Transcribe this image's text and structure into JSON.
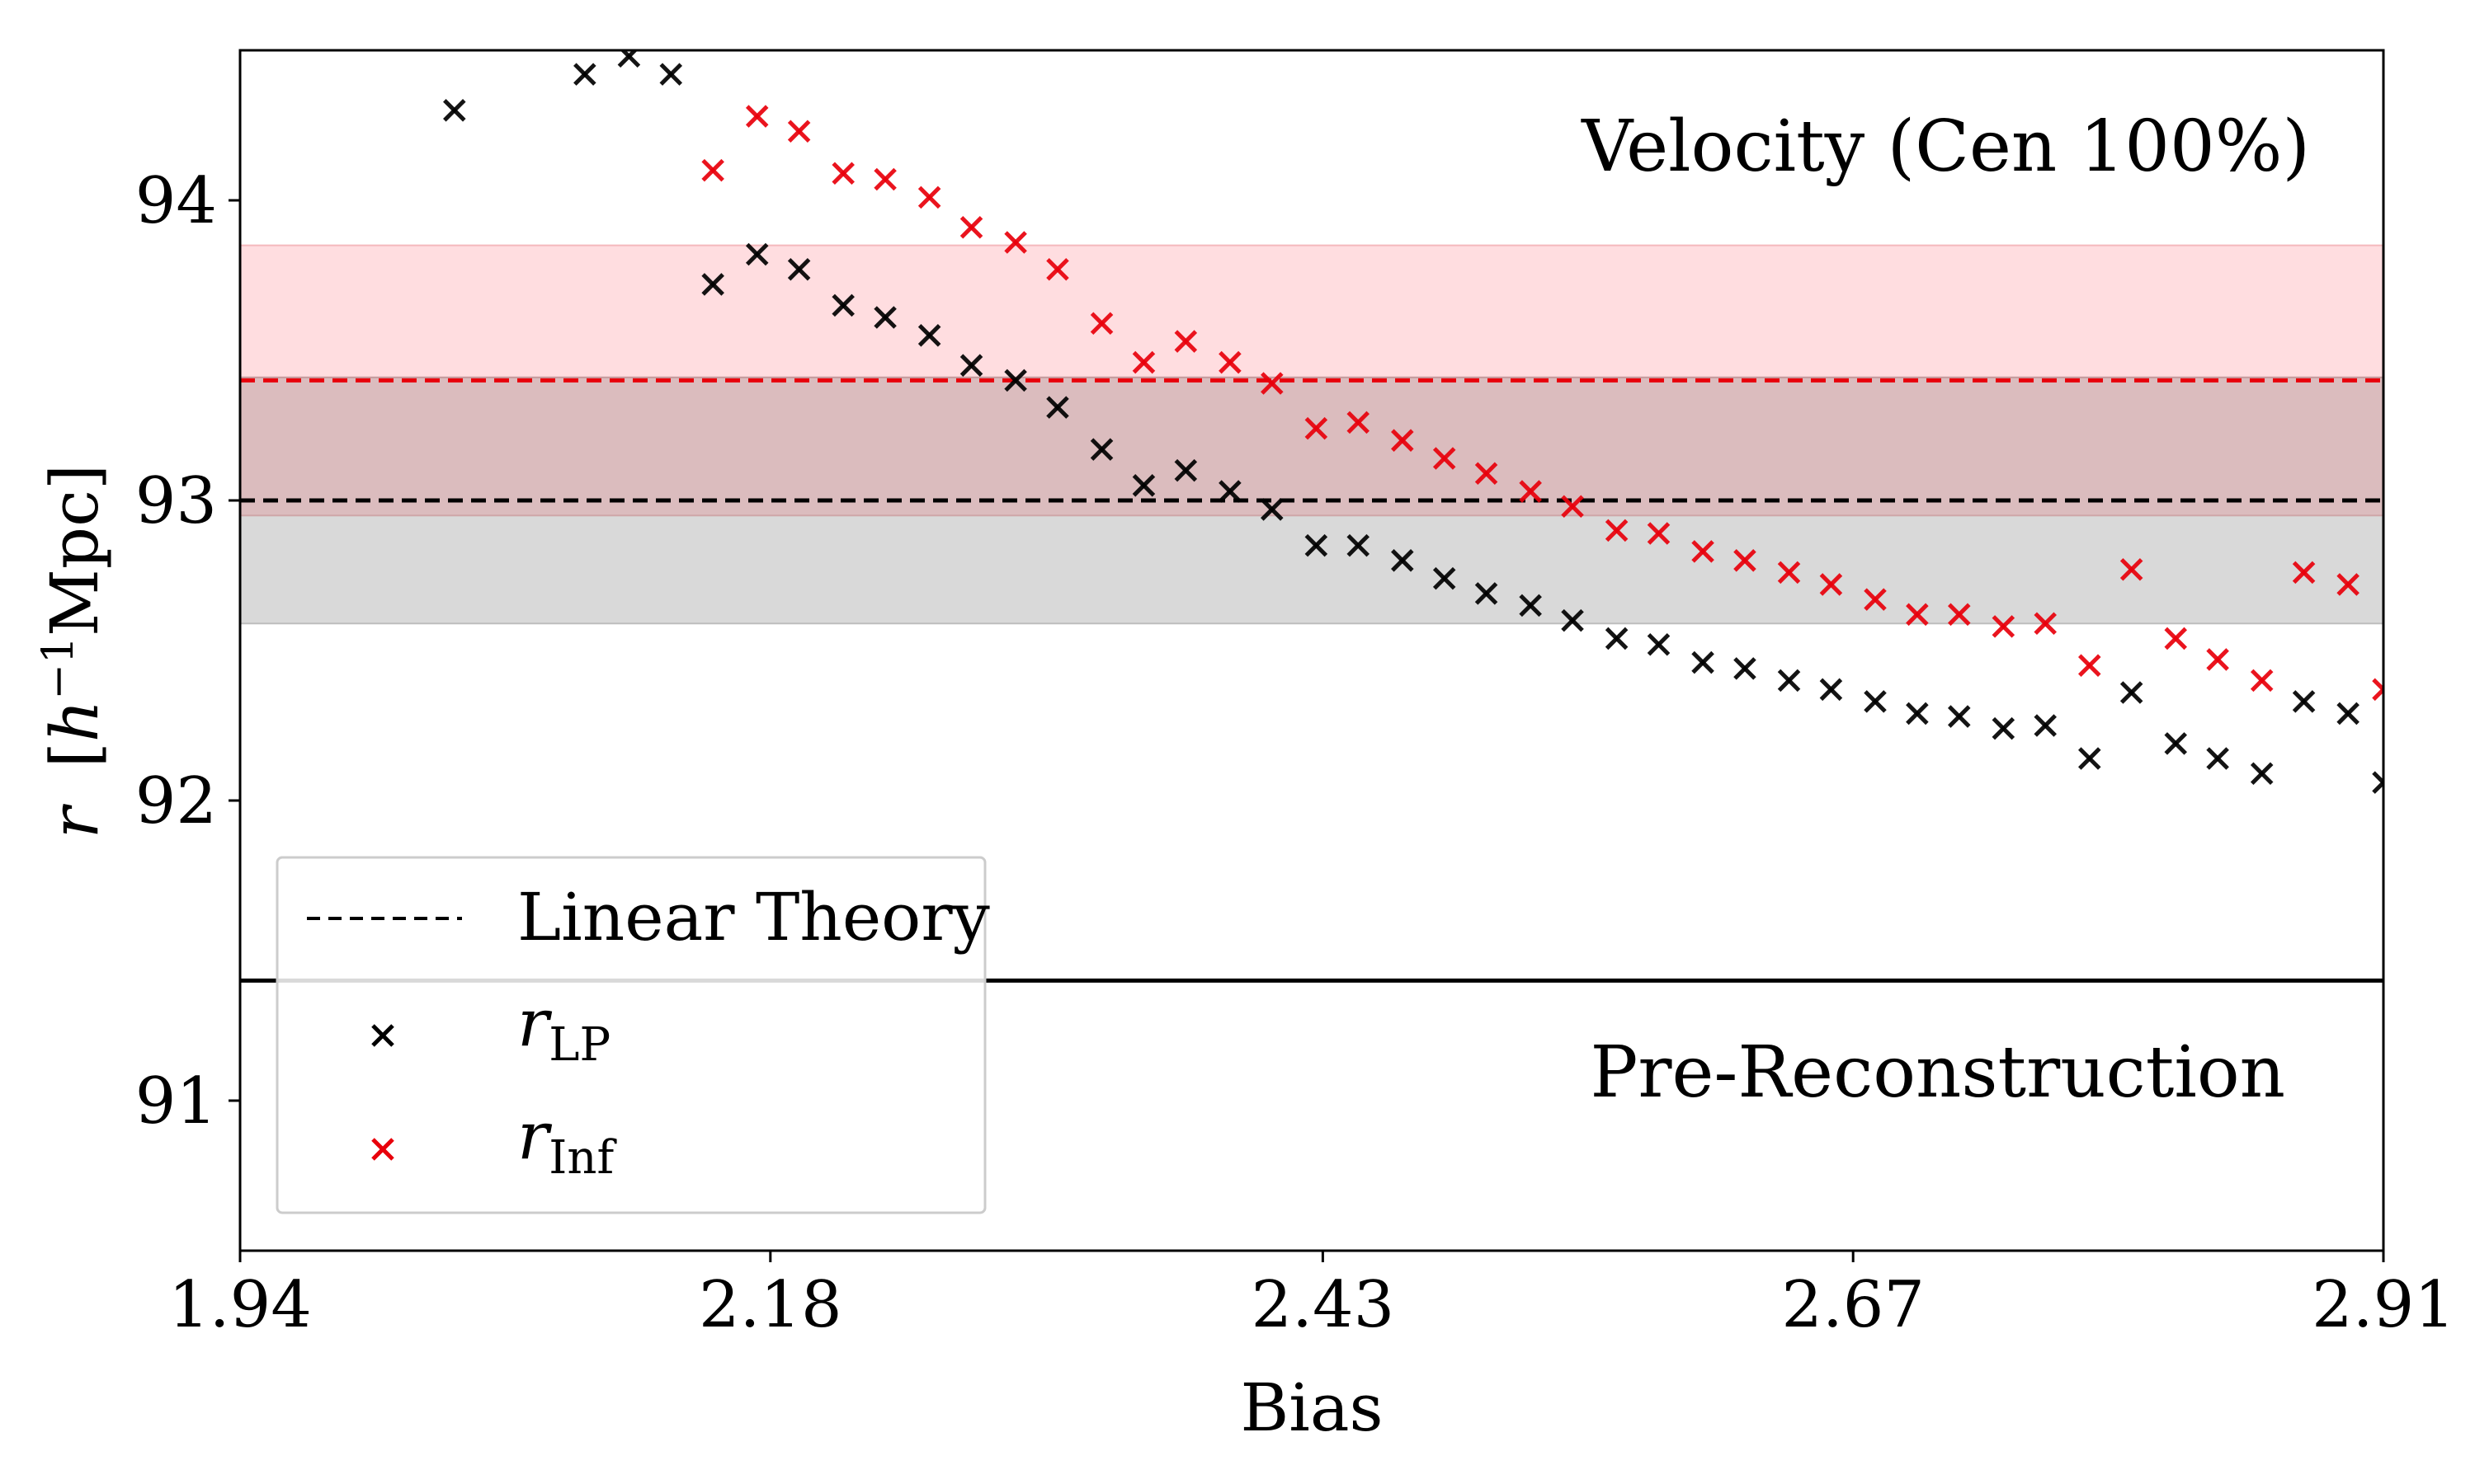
{
  "chart_data": {
    "type": "scatter",
    "title": "",
    "xlabel": "Bias",
    "ylabel_parts": {
      "symbol": "r",
      "unit_open": "[",
      "unit_h": "h",
      "unit_exp": "−1",
      "unit_rest": "Mpc]"
    },
    "xlim": [
      1.94,
      2.91
    ],
    "ylim": [
      90.5,
      94.5
    ],
    "xticks": [
      1.94,
      2.18,
      2.43,
      2.67,
      2.91
    ],
    "xtick_labels": [
      "1.94",
      "2.18",
      "2.43",
      "2.67",
      "2.91"
    ],
    "yticks": [
      91,
      92,
      93,
      94
    ],
    "ytick_labels": [
      "91",
      "92",
      "93",
      "94"
    ],
    "annotations": {
      "top_right": "Velocity (Cen 100%)",
      "bottom_right": "Pre-Reconstruction"
    },
    "colors": {
      "lp": "#000000",
      "inf": "#e8000b",
      "inf_band": "#ffdde0",
      "lp_band": "#d9d9d9",
      "overlap_band": "#dbbcbe"
    },
    "reference_lines": [
      {
        "name": "Linear Theory (LP)",
        "y": 93.0,
        "style": "dashed",
        "color": "#000000"
      },
      {
        "name": "Linear Theory (Inf)",
        "y": 93.4,
        "style": "dashed",
        "color": "#e8000b"
      },
      {
        "name": "Pre-Reconstruction",
        "y": 91.4,
        "style": "solid",
        "color": "#000000"
      }
    ],
    "bands": [
      {
        "name": "Inf band",
        "y0": 92.95,
        "y1": 93.85,
        "color": "#ffdde0"
      },
      {
        "name": "LP band",
        "y0": 92.59,
        "y1": 93.41,
        "color": "#d9d9d9"
      }
    ],
    "legend": {
      "position": "lower-left",
      "linear": "Linear Theory",
      "lp_sym": "r",
      "lp_sub": "LP",
      "inf_sym": "r",
      "inf_sub": "Inf"
    },
    "series": [
      {
        "name": "r_LP",
        "color": "#000000",
        "marker": "x",
        "x": [
          2.037,
          2.096,
          2.116,
          2.135,
          2.154,
          2.174,
          2.193,
          2.213,
          2.232,
          2.252,
          2.271,
          2.291,
          2.31,
          2.33,
          2.349,
          2.368,
          2.388,
          2.407,
          2.427,
          2.446,
          2.466,
          2.485,
          2.504,
          2.524,
          2.543,
          2.563,
          2.582,
          2.602,
          2.621,
          2.641,
          2.66,
          2.68,
          2.699,
          2.718,
          2.738,
          2.757,
          2.777,
          2.796,
          2.816,
          2.835,
          2.855,
          2.874,
          2.894,
          2.91
        ],
        "y": [
          94.3,
          94.42,
          94.48,
          94.42,
          93.72,
          93.82,
          93.77,
          93.65,
          93.61,
          93.55,
          93.45,
          93.4,
          93.31,
          93.17,
          93.05,
          93.1,
          93.03,
          92.97,
          92.85,
          92.85,
          92.8,
          92.74,
          92.69,
          92.65,
          92.6,
          92.54,
          92.52,
          92.46,
          92.44,
          92.4,
          92.37,
          92.33,
          92.29,
          92.28,
          92.24,
          92.25,
          92.14,
          92.36,
          92.19,
          92.14,
          92.09,
          92.33,
          92.29,
          92.06
        ]
      },
      {
        "name": "r_Inf",
        "color": "#e8000b",
        "marker": "x",
        "x": [
          2.154,
          2.174,
          2.193,
          2.213,
          2.232,
          2.252,
          2.271,
          2.291,
          2.31,
          2.33,
          2.349,
          2.368,
          2.388,
          2.407,
          2.427,
          2.446,
          2.466,
          2.485,
          2.504,
          2.524,
          2.543,
          2.563,
          2.582,
          2.602,
          2.621,
          2.641,
          2.66,
          2.68,
          2.699,
          2.718,
          2.738,
          2.757,
          2.777,
          2.796,
          2.816,
          2.835,
          2.855,
          2.874,
          2.894,
          2.91
        ],
        "y": [
          94.1,
          94.28,
          94.23,
          94.09,
          94.07,
          94.01,
          93.91,
          93.86,
          93.77,
          93.59,
          93.46,
          93.53,
          93.46,
          93.39,
          93.24,
          93.26,
          93.2,
          93.14,
          93.09,
          93.03,
          92.98,
          92.9,
          92.89,
          92.83,
          92.8,
          92.76,
          92.72,
          92.67,
          92.62,
          92.62,
          92.58,
          92.59,
          92.45,
          92.77,
          92.54,
          92.47,
          92.4,
          92.76,
          92.72,
          92.37
        ]
      }
    ]
  }
}
